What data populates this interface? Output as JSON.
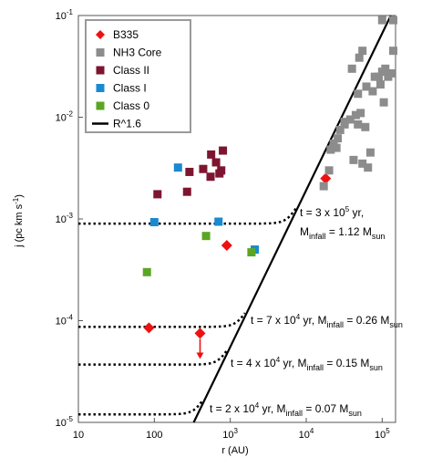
{
  "chart_data": {
    "type": "scatter",
    "xscale": "log",
    "yscale": "log",
    "xlim": [
      10,
      150000
    ],
    "ylim": [
      1e-05,
      0.1
    ],
    "x_ticks": [
      {
        "value": 10,
        "base": "10",
        "exp": ""
      },
      {
        "value": 100,
        "base": "100",
        "exp": ""
      },
      {
        "value": 1000,
        "base": "10",
        "exp": "3"
      },
      {
        "value": 10000,
        "base": "10",
        "exp": "4"
      },
      {
        "value": 100000,
        "base": "10",
        "exp": "5"
      }
    ],
    "y_ticks": [
      {
        "value": 1e-05,
        "base": "10",
        "exp": "-5"
      },
      {
        "value": 0.0001,
        "base": "10",
        "exp": "-4"
      },
      {
        "value": 0.001,
        "base": "10",
        "exp": "-3"
      },
      {
        "value": 0.01,
        "base": "10",
        "exp": "-2"
      },
      {
        "value": 0.1,
        "base": "10",
        "exp": "-1"
      }
    ],
    "xlabel": "r (AU)",
    "ylabel": {
      "main": "j (pc km s",
      "sup": "-1",
      "end": ")"
    },
    "grid": false,
    "legend_position": "top-left",
    "series": [
      {
        "name": "B335",
        "marker": "diamond",
        "color": "#ee1111",
        "points": [
          [
            18000,
            0.0025
          ],
          [
            900,
            0.00055
          ],
          [
            85,
            8.5e-05
          ],
          [
            400,
            7.5e-05
          ]
        ]
      },
      {
        "name": "NH3 Core",
        "marker": "square",
        "color": "#8c8c8c",
        "points": [
          [
            17000,
            0.0021
          ],
          [
            20000,
            0.003
          ],
          [
            21000,
            0.0048
          ],
          [
            23000,
            0.0055
          ],
          [
            26000,
            0.0062
          ],
          [
            28000,
            0.0075
          ],
          [
            32000,
            0.0085
          ],
          [
            38000,
            0.0095
          ],
          [
            42000,
            0.0038
          ],
          [
            45000,
            0.0105
          ],
          [
            48000,
            0.0085
          ],
          [
            52000,
            0.011
          ],
          [
            55000,
            0.0035
          ],
          [
            60000,
            0.008
          ],
          [
            65000,
            0.0032
          ],
          [
            70000,
            0.0045
          ],
          [
            62000,
            0.02
          ],
          [
            75000,
            0.018
          ],
          [
            80000,
            0.025
          ],
          [
            90000,
            0.025
          ],
          [
            100000,
            0.028
          ],
          [
            110000,
            0.03
          ],
          [
            120000,
            0.025
          ],
          [
            130000,
            0.027
          ],
          [
            95000,
            0.021
          ],
          [
            105000,
            0.014
          ],
          [
            48000,
            0.017
          ],
          [
            40000,
            0.03
          ],
          [
            55000,
            0.045
          ],
          [
            50000,
            0.0385
          ],
          [
            100000,
            0.09
          ],
          [
            140000,
            0.09
          ],
          [
            140000,
            0.045
          ],
          [
            25000,
            0.005
          ],
          [
            32000,
            0.009
          ]
        ]
      },
      {
        "name": "Class II",
        "marker": "square",
        "color": "#7e1530",
        "points": [
          [
            110,
            0.00175
          ],
          [
            270,
            0.00185
          ],
          [
            290,
            0.0029
          ],
          [
            440,
            0.0031
          ],
          [
            560,
            0.0043
          ],
          [
            650,
            0.0036
          ],
          [
            720,
            0.0028
          ],
          [
            800,
            0.0047
          ],
          [
            550,
            0.0026
          ],
          [
            760,
            0.003
          ]
        ]
      },
      {
        "name": "Class I",
        "marker": "square",
        "color": "#1a8ad0",
        "points": [
          [
            205,
            0.0032
          ],
          [
            100,
            0.00093
          ],
          [
            700,
            0.00094
          ],
          [
            2100,
            0.0005
          ]
        ]
      },
      {
        "name": "Class 0",
        "marker": "square",
        "color": "#5aa624",
        "points": [
          [
            80,
            0.0003
          ],
          [
            480,
            0.00068
          ],
          [
            1900,
            0.00047
          ]
        ]
      },
      {
        "name": "R^1.6",
        "marker": "line",
        "color": "#000000",
        "x": [
          330,
          130000
        ],
        "y": [
          1e-05,
          0.1
        ]
      }
    ],
    "model_curves": [
      {
        "plateau": 0.0009,
        "label": {
          "pre": "t = 3 x 10",
          "exp": "5",
          "post": " yr,",
          "line2_pre": "M",
          "line2_sub": "infall",
          "line2_post": " = 1.12 M",
          "line2_sub2": "sun"
        }
      },
      {
        "plateau": 8.7e-05,
        "label": {
          "pre": "t = 7 x 10",
          "exp": "4",
          "post": " yr, M",
          "sub": "infall",
          "post2": " = 0.26 M",
          "sub2": "sun"
        }
      },
      {
        "plateau": 3.7e-05,
        "label": {
          "pre": "t = 4 x 10",
          "exp": "4",
          "post": " yr, M",
          "sub": "infall",
          "post2": " = 0.15 M",
          "sub2": "sun"
        }
      },
      {
        "plateau": 1.2e-05,
        "label": {
          "pre": "t = 2 x 10",
          "exp": "4",
          "post": " yr, M",
          "sub": "infall",
          "post2": " = 0.07 M",
          "sub2": "sun"
        }
      }
    ],
    "upper_limit_arrow": {
      "x": 400,
      "y_from": 7.5e-05,
      "y_to": 4.2e-05,
      "color": "#ee1111"
    }
  }
}
